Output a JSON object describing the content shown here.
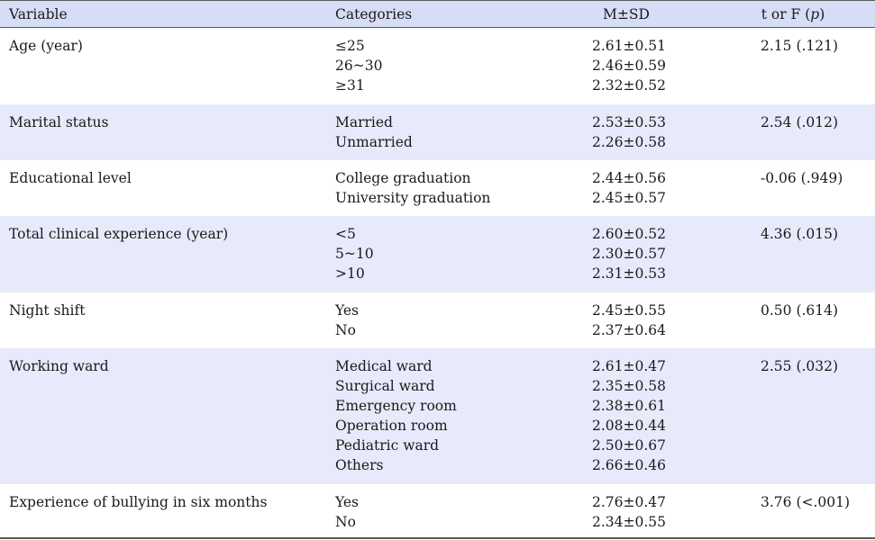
{
  "header": {
    "variable": "Variable",
    "categories": "Categories",
    "msd": "M±SD",
    "tf_prefix": "t or F (",
    "tf_p": "p",
    "tf_suffix": ")"
  },
  "rows": [
    {
      "variable": "Age (year)",
      "categories": [
        "≤25",
        "26~30",
        "≥31"
      ],
      "msd": [
        "2.61±0.51",
        "2.46±0.59",
        "2.32±0.52"
      ],
      "tf": "2.15 (.121)"
    },
    {
      "variable": "Marital status",
      "categories": [
        "Married",
        "Unmarried"
      ],
      "msd": [
        "2.53±0.53",
        "2.26±0.58"
      ],
      "tf": "2.54 (.012)"
    },
    {
      "variable": "Educational level",
      "categories": [
        "College graduation",
        "University graduation"
      ],
      "msd": [
        "2.44±0.56",
        "2.45±0.57"
      ],
      "tf": "-0.06 (.949)"
    },
    {
      "variable": "Total clinical experience (year)",
      "categories": [
        "<5",
        "5~10",
        ">10"
      ],
      "msd": [
        "2.60±0.52",
        "2.30±0.57",
        "2.31±0.53"
      ],
      "tf": "4.36 (.015)"
    },
    {
      "variable": "Night shift",
      "categories": [
        "Yes",
        "No"
      ],
      "msd": [
        "2.45±0.55",
        "2.37±0.64"
      ],
      "tf": "0.50 (.614)"
    },
    {
      "variable": "Working ward",
      "categories": [
        "Medical ward",
        "Surgical ward",
        "Emergency room",
        "Operation room",
        "Pediatric ward",
        "Others"
      ],
      "msd": [
        "2.61±0.47",
        "2.35±0.58",
        "2.38±0.61",
        "2.08±0.44",
        "2.50±0.67",
        "2.66±0.46"
      ],
      "tf": "2.55 (.032)"
    },
    {
      "variable": "Experience of bullying in six months",
      "categories": [
        "Yes",
        "No"
      ],
      "msd": [
        "2.76±0.47",
        "2.34±0.55"
      ],
      "tf": "3.76 (<.001)"
    }
  ]
}
